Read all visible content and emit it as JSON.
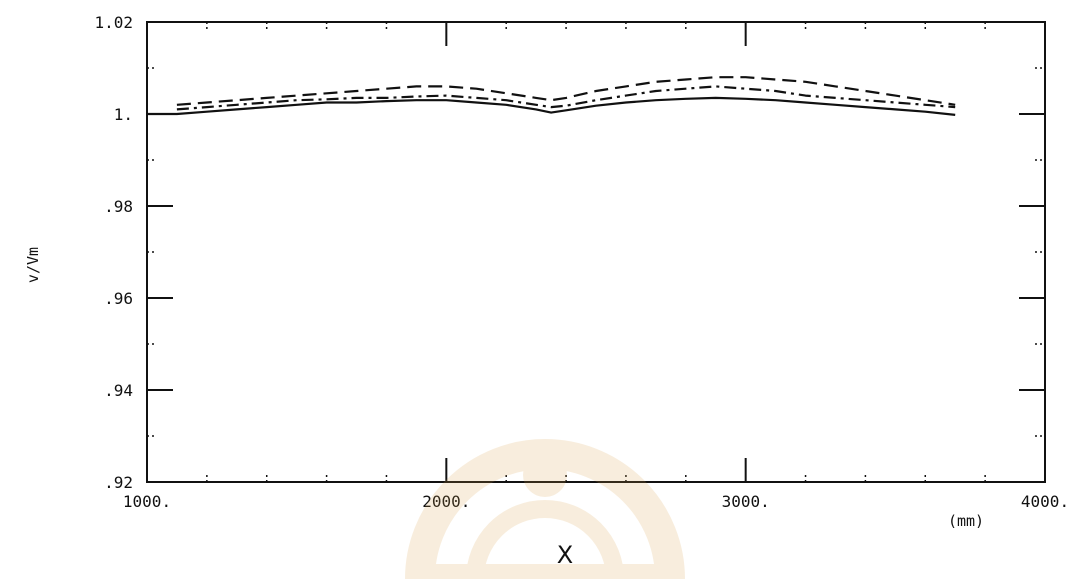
{
  "chart_data": {
    "type": "line",
    "title": "",
    "xlabel": "X",
    "xunit": "(mm)",
    "ylabel": "v/Vm",
    "xlim": [
      1000,
      4000
    ],
    "ylim": [
      0.92,
      1.02
    ],
    "x_tick_labels": [
      "1000.",
      "2000.",
      "3000.",
      "4000."
    ],
    "x_tick_values": [
      1000,
      2000,
      3000,
      4000
    ],
    "y_tick_labels": [
      ".92",
      ".94",
      ".96",
      ".98",
      "1.",
      "1.02"
    ],
    "y_tick_values": [
      0.92,
      0.94,
      0.96,
      0.98,
      1.0,
      1.02
    ],
    "grid": false,
    "series": [
      {
        "style": "solid",
        "x": [
          1000,
          1100,
          1200,
          1300,
          1400,
          1500,
          1600,
          1700,
          1800,
          1900,
          2000,
          2100,
          2200,
          2300,
          2350,
          2400,
          2500,
          2600,
          2700,
          2800,
          2900,
          3000,
          3100,
          3200,
          3300,
          3400,
          3500,
          3600,
          3700
        ],
        "y": [
          1.0,
          1.0,
          1.0005,
          1.001,
          1.0015,
          1.002,
          1.0025,
          1.0025,
          1.0028,
          1.003,
          1.003,
          1.0025,
          1.002,
          1.001,
          1.0003,
          1.0008,
          1.0018,
          1.0025,
          1.003,
          1.0033,
          1.0035,
          1.0033,
          1.003,
          1.0025,
          1.002,
          1.0015,
          1.001,
          1.0005,
          0.9998
        ]
      },
      {
        "style": "dash-dot",
        "x": [
          1100,
          1200,
          1300,
          1400,
          1500,
          1600,
          1700,
          1800,
          1900,
          2000,
          2100,
          2200,
          2300,
          2350,
          2400,
          2500,
          2600,
          2700,
          2800,
          2900,
          3000,
          3100,
          3200,
          3300,
          3400,
          3500,
          3600,
          3700
        ],
        "y": [
          1.001,
          1.0015,
          1.002,
          1.0025,
          1.003,
          1.0032,
          1.0035,
          1.0035,
          1.0038,
          1.004,
          1.0035,
          1.003,
          1.002,
          1.0015,
          1.0018,
          1.003,
          1.004,
          1.005,
          1.0055,
          1.006,
          1.0055,
          1.005,
          1.004,
          1.0035,
          1.003,
          1.0025,
          1.002,
          1.0015
        ]
      },
      {
        "style": "dashed",
        "x": [
          1100,
          1200,
          1300,
          1400,
          1500,
          1600,
          1700,
          1800,
          1900,
          2000,
          2100,
          2200,
          2300,
          2350,
          2400,
          2500,
          2600,
          2700,
          2800,
          2900,
          3000,
          3100,
          3200,
          3300,
          3400,
          3500,
          3600,
          3700
        ],
        "y": [
          1.002,
          1.0025,
          1.003,
          1.0035,
          1.004,
          1.0045,
          1.005,
          1.0055,
          1.006,
          1.006,
          1.0055,
          1.0045,
          1.0035,
          1.003,
          1.0035,
          1.005,
          1.006,
          1.007,
          1.0075,
          1.008,
          1.008,
          1.0075,
          1.007,
          1.006,
          1.005,
          1.004,
          1.003,
          1.002
        ]
      }
    ]
  }
}
